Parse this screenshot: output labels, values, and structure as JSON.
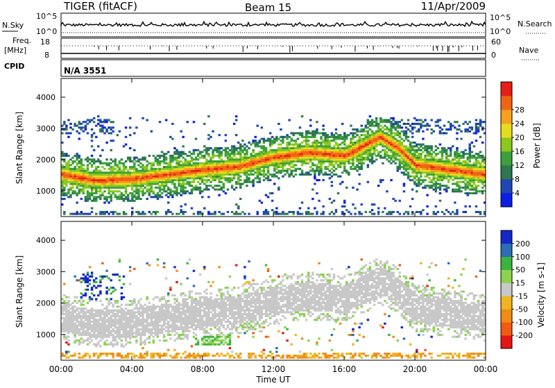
{
  "header": {
    "station": "TIGER (fitACF)",
    "beam": "Beam 15",
    "date": "11/Apr/2009"
  },
  "labels": {
    "nsky": "N.Sky",
    "nsearch": "N.Search",
    "freq_line1": "Freq.",
    "freq_line2": "[MHz]",
    "nave": "Nave",
    "cpid": "CPID",
    "cpid_value": "N/A 3551",
    "nsky_tick_top": "10^5",
    "nsky_tick_bottom": "10^0",
    "nsearch_tick_top": "10^5",
    "nsearch_tick_bottom": "10^0",
    "freq_tick_top": "18",
    "freq_tick_bottom": "8",
    "nave_tick_top": "60",
    "nave_tick_bottom": "0"
  },
  "chart_data": [
    {
      "type": "heatmap",
      "name": "power",
      "ylabel": "Slant Range [km]",
      "xlabel": "",
      "xlim": [
        0,
        24
      ],
      "ylim": [
        180,
        4600
      ],
      "yticks": [
        "1000",
        "2000",
        "3000",
        "4000"
      ],
      "colorbar": {
        "label": "Power [dB]",
        "range": [
          0,
          32
        ],
        "ticks": [
          "4",
          "8",
          "12",
          "16",
          "20",
          "24",
          "28"
        ],
        "colors": [
          "#0a1ee6",
          "#1e46b4",
          "#2d7850",
          "#3ca03c",
          "#8cc81e",
          "#e6dc1e",
          "#f5a01e",
          "#f06414",
          "#e61e14"
        ]
      }
    },
    {
      "type": "heatmap",
      "name": "velocity",
      "ylabel": "Slant Range [km]",
      "xlabel": "Time UT",
      "xlim": [
        0,
        24
      ],
      "ylim": [
        180,
        4600
      ],
      "yticks": [
        "1000",
        "2000",
        "3000",
        "4000"
      ],
      "xticks": [
        "00:00",
        "04:00",
        "08:00",
        "12:00",
        "16:00",
        "20:00",
        "00:00"
      ],
      "colorbar": {
        "label": "Velocity [m s-1]",
        "ticks": [
          "200",
          "100",
          "50",
          "15",
          "-15",
          "-50",
          "-100",
          "-200"
        ],
        "colors": [
          "#1428c8",
          "#2d6eb4",
          "#3cb43c",
          "#8cd250",
          "#c8c8c8",
          "#f0b41e",
          "#f08c14",
          "#f05a14",
          "#e61414"
        ]
      }
    }
  ]
}
